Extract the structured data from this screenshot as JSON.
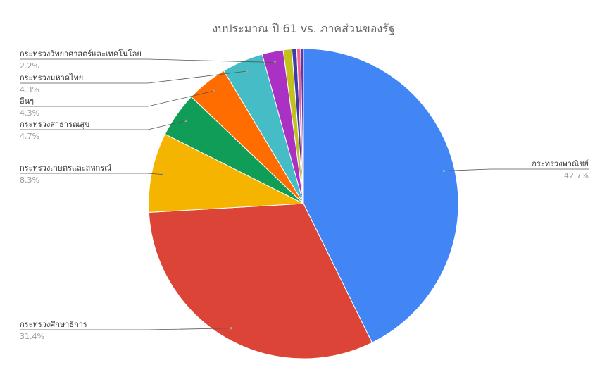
{
  "chart_data": {
    "type": "pie",
    "title": "งบประมาณ ปี 61  vs. ภาคส่วนของรัฐ",
    "slices": [
      {
        "label": "กระทรวงพาณิชย์",
        "value": 42.7,
        "pct_label": "42.7%",
        "color": "#4285f4"
      },
      {
        "label": "กระทรวงศึกษาธิการ",
        "value": 31.4,
        "pct_label": "31.4%",
        "color": "#db4437"
      },
      {
        "label": "กระทรวงเกษตรและสหกรณ์",
        "value": 8.3,
        "pct_label": "8.3%",
        "color": "#f4b400"
      },
      {
        "label": "กระทรวงสาธารณสุข",
        "value": 4.7,
        "pct_label": "4.7%",
        "color": "#0f9d58"
      },
      {
        "label": "อื่นๆ",
        "value": 4.3,
        "pct_label": "4.3%",
        "color": "#ff6d00"
      },
      {
        "label": "กระทรวงมหาดไทย",
        "value": 4.3,
        "pct_label": "4.3%",
        "color": "#46bdc6"
      },
      {
        "label": "กระทรวงวิทยาศาสตร์และเทคโนโลย",
        "value": 2.2,
        "pct_label": "2.2%",
        "color": "#ab30c4"
      },
      {
        "label": "",
        "value": 0.9,
        "pct_label": "",
        "color": "#c2c21c"
      },
      {
        "label": "",
        "value": 0.5,
        "pct_label": "",
        "color": "#3b3ea8"
      },
      {
        "label": "",
        "value": 0.4,
        "pct_label": "",
        "color": "#f06292"
      },
      {
        "label": "",
        "value": 0.3,
        "pct_label": "",
        "color": "#5e35b1"
      }
    ]
  }
}
